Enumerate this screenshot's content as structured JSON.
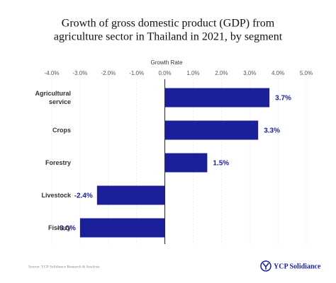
{
  "chart_data": {
    "type": "bar",
    "orientation": "horizontal",
    "title": [
      "Growth of gross domestic product (GDP) from",
      "agriculture sector in Thailand in 2021, by segment"
    ],
    "x_label": "Growth Rate",
    "categories": [
      "Agricultural service",
      "Crops",
      "Forestry",
      "Livestock",
      "Fishery"
    ],
    "values": [
      3.7,
      3.3,
      1.5,
      -2.4,
      -3.0
    ],
    "value_labels": [
      "3.7%",
      "3.3%",
      "1.5%",
      "-2.4%",
      "-3.0%"
    ],
    "color": "#1b1f9a",
    "xlim": [
      -4,
      5
    ],
    "xticks": [
      {
        "value": -4,
        "label": "-4.0%"
      },
      {
        "value": -3,
        "label": "-3.0%"
      },
      {
        "value": -2,
        "label": "-2.0%"
      },
      {
        "value": -1,
        "label": "-1.0%"
      },
      {
        "value": 0,
        "label": "0.0%"
      },
      {
        "value": 1,
        "label": "1.0%"
      },
      {
        "value": 2,
        "label": "2.0%"
      },
      {
        "value": 3,
        "label": "3.0%"
      },
      {
        "value": 4,
        "label": "4.0%"
      },
      {
        "value": 5,
        "label": "5.0%"
      }
    ],
    "grid": true,
    "source": "Source: YCP Solidiance Research & Analysis",
    "logo": "YCP Solidiance"
  }
}
